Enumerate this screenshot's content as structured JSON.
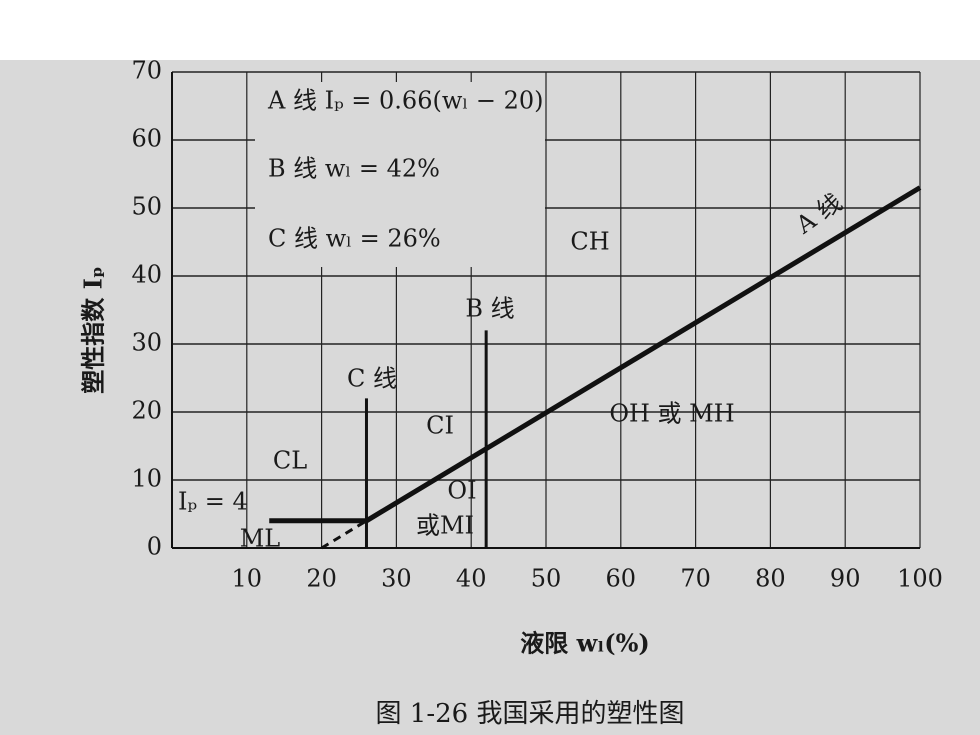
{
  "chart_data": {
    "type": "line",
    "legend_notes": [
      "A 线  Iₚ = 0.66(wₗ − 20)",
      "B 线  wₗ = 42%",
      "C 线  wₗ = 26%"
    ],
    "x_label": "液限 wₗ(%)",
    "y_label": "塑性指数 Iₚ",
    "caption": "图 1-26    我国采用的塑性图",
    "xlim": [
      0,
      100
    ],
    "ylim": [
      0,
      70
    ],
    "xticks": [
      10,
      20,
      30,
      40,
      50,
      60,
      70,
      80,
      90,
      100
    ],
    "yticks": [
      0,
      10,
      20,
      30,
      40,
      50,
      60,
      70
    ],
    "grid": true,
    "color": "#111111",
    "series": [
      {
        "name": "A 线",
        "x": [
          26,
          100
        ],
        "values": [
          4,
          53
        ]
      },
      {
        "x": [
          20,
          26
        ],
        "values": [
          0,
          4
        ],
        "dashed": true
      },
      {
        "name": "B 线",
        "x": [
          42,
          42
        ],
        "values": [
          0,
          32
        ]
      },
      {
        "name": "C 线",
        "x": [
          26,
          26
        ],
        "values": [
          0,
          22
        ]
      },
      {
        "name": "Iₚ = 4",
        "x": [
          13,
          26
        ],
        "values": [
          4,
          4
        ]
      }
    ],
    "annotations": [
      "CH",
      "CL",
      "CI",
      "OH 或 MH",
      "ML",
      "OI",
      "或MI"
    ]
  }
}
